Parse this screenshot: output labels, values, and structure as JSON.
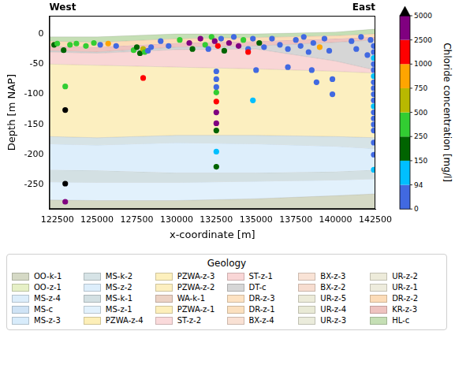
{
  "chart_data": {
    "type": "scatter",
    "annotations": [
      {
        "text": "West",
        "x": 122000
      },
      {
        "text": "East",
        "x": 142500
      }
    ],
    "x_label": "x-coordinate [m]",
    "y_label": "Depth [m NAP]",
    "xlim": [
      122000,
      142500
    ],
    "xticks": [
      122500,
      125000,
      127500,
      130000,
      132500,
      135000,
      137500,
      140000,
      142500
    ],
    "ylim": [
      -290,
      30
    ],
    "yticks": [
      -250,
      -200,
      -150,
      -100,
      -50,
      0
    ],
    "grid": false,
    "points": {
      "x": [
        122300,
        122500,
        122900,
        123300,
        123700,
        124300,
        124800,
        125200,
        125700,
        126200,
        127300,
        127500,
        127700,
        127900,
        128000,
        128200,
        128400,
        127900,
        123000,
        123000,
        123000,
        123000,
        129000,
        129500,
        130200,
        130800,
        131000,
        131500,
        131800,
        132000,
        132200,
        132400,
        132600,
        132800,
        133000,
        133300,
        133600,
        133900,
        134200,
        134500,
        134800,
        135200,
        135500,
        132500,
        132500,
        132500,
        132500,
        132500,
        132500,
        132500,
        132500,
        132500,
        132500,
        134500,
        134800,
        135000,
        136000,
        136500,
        137000,
        137500,
        137800,
        138000,
        138300,
        138600,
        139000,
        139300,
        139600,
        137000,
        138500,
        138800,
        139800,
        139800,
        141000,
        141300,
        141600,
        142400,
        142400,
        142400,
        142400,
        142400,
        142400,
        142400,
        142400,
        142400,
        142400,
        142400,
        142400,
        142400,
        142400,
        142400,
        142400,
        142400,
        142400,
        142200,
        142000
      ],
      "y": [
        -18,
        -16,
        -27,
        -18,
        -16,
        -20,
        -15,
        -18,
        -16,
        -20,
        -27,
        -22,
        -32,
        -25,
        -30,
        -28,
        -22,
        -73,
        -87,
        -126,
        -248,
        -278,
        -12,
        -20,
        -10,
        -15,
        -25,
        -8,
        -18,
        -25,
        -5,
        -12,
        -20,
        -8,
        -28,
        -15,
        -5,
        -20,
        -10,
        -25,
        -8,
        -15,
        -22,
        -62,
        -75,
        -88,
        -97,
        -112,
        -130,
        -148,
        -160,
        -195,
        -220,
        -30,
        -110,
        -60,
        -8,
        -18,
        -25,
        -10,
        -20,
        -5,
        -30,
        -15,
        -22,
        -8,
        -28,
        -55,
        -60,
        -80,
        -75,
        -100,
        -12,
        -25,
        -5,
        -20,
        -30,
        -40,
        -50,
        -60,
        -70,
        -80,
        -90,
        -100,
        -110,
        -120,
        -130,
        -140,
        -150,
        -160,
        -180,
        -200,
        -225,
        -10,
        -35
      ],
      "values": [
        200,
        300,
        200,
        300,
        300,
        300,
        300,
        50,
        800,
        50,
        300,
        200,
        200,
        600,
        300,
        50,
        50,
        1500,
        300,
        7000,
        7000,
        3000,
        50,
        50,
        300,
        3000,
        200,
        3000,
        300,
        50,
        300,
        3000,
        1500,
        50,
        200,
        3000,
        50,
        3000,
        300,
        50,
        50,
        200,
        50,
        50,
        50,
        50,
        300,
        1500,
        3000,
        3000,
        200,
        120,
        200,
        1500,
        120,
        50,
        50,
        50,
        50,
        50,
        50,
        50,
        50,
        50,
        800,
        50,
        50,
        50,
        50,
        50,
        50,
        50,
        50,
        50,
        50,
        50,
        50,
        120,
        50,
        50,
        120,
        50,
        50,
        50,
        50,
        120,
        50,
        50,
        50,
        50,
        50,
        50,
        120,
        50,
        50
      ]
    },
    "colorbar": {
      "title": "Chloride concentration [mg/l]",
      "ticks": [
        0,
        94,
        150,
        250,
        500,
        750,
        1000,
        2500,
        5000
      ],
      "colors": [
        "#4169e1",
        "#00bfff",
        "#006400",
        "#32cd32",
        "#b8b800",
        "#ffa500",
        "#ff0000",
        "#800080",
        "#000000"
      ]
    },
    "legend": "bottom",
    "legend_title": "Geology",
    "layers": {
      "x": [
        122000,
        125000,
        130000,
        135000,
        140000,
        142500
      ],
      "units": [
        {
          "name": "OO-k-1",
          "color": "#d5d9c5",
          "top": [
            -275,
            -276,
            -276,
            -273,
            -268,
            -265
          ],
          "bottom": [
            -290,
            -290,
            -290,
            -290,
            -290,
            -290
          ]
        },
        {
          "name": "OO-z-1",
          "color": "#e6f0c6"
        },
        {
          "name": "MS-z-4",
          "color": "#dcedfa"
        },
        {
          "name": "MS-c",
          "color": "#cfe3f5"
        },
        {
          "name": "MS-z-3",
          "color": "#d8ecfb"
        },
        {
          "name": "MS-k-2",
          "color": "#d6e3e6",
          "top": [
            -170,
            -172,
            -168,
            -168,
            -170,
            -172
          ],
          "bottom": [
            -182,
            -184,
            -180,
            -182,
            -186,
            -190
          ]
        },
        {
          "name": "MS-z-2",
          "color": "#ddeefb",
          "top": [
            -182,
            -184,
            -180,
            -182,
            -186,
            -190
          ],
          "bottom": [
            -225,
            -226,
            -230,
            -230,
            -228,
            -225
          ]
        },
        {
          "name": "MS-k-1",
          "color": "#d3e0e3",
          "top": [
            -225,
            -226,
            -230,
            -230,
            -228,
            -225
          ],
          "bottom": [
            -245,
            -246,
            -246,
            -244,
            -242,
            -240
          ]
        },
        {
          "name": "MS-z-1",
          "color": "#e2f1fc",
          "top": [
            -245,
            -246,
            -246,
            -244,
            -242,
            -240
          ],
          "bottom": [
            -275,
            -276,
            -276,
            -273,
            -268,
            -265
          ]
        },
        {
          "name": "PZWA-z-4",
          "color": "#fdefb8"
        },
        {
          "name": "PZWA-z-3",
          "color": "#fdf0bd"
        },
        {
          "name": "PZWA-z-2",
          "color": "#fcefc0",
          "top": [
            -50,
            -52,
            -55,
            -58,
            -62,
            -65
          ],
          "bottom": [
            -170,
            -172,
            -168,
            -168,
            -170,
            -172
          ]
        },
        {
          "name": "WA-k-1",
          "color": "#ecd2c4"
        },
        {
          "name": "PZWA-z-1",
          "color": "#fdefbb"
        },
        {
          "name": "ST-z-2",
          "color": "#fadadb"
        },
        {
          "name": "ST-z-1",
          "color": "#f9d6d6",
          "top": [
            -30,
            -32,
            -26,
            -25,
            -45,
            -60
          ],
          "bottom": [
            -50,
            -52,
            -55,
            -58,
            -62,
            -65
          ]
        },
        {
          "name": "DT-c",
          "color": "#d6d6d6",
          "top": [
            -28,
            -30,
            -22,
            -20,
            -14,
            -10
          ],
          "bottom": [
            -30,
            -32,
            -26,
            -25,
            -45,
            -60
          ]
        },
        {
          "name": "DR-z-3",
          "color": "#fde2c2"
        },
        {
          "name": "DR-z-1",
          "color": "#fbe0bf"
        },
        {
          "name": "BX-z-4",
          "color": "#f9e1d4"
        },
        {
          "name": "BX-z-3",
          "color": "#f9e3d6"
        },
        {
          "name": "BX-z-2",
          "color": "#f7ddd0"
        },
        {
          "name": "UR-z-5",
          "color": "#ecebd9"
        },
        {
          "name": "UR-z-4",
          "color": "#e9ead6"
        },
        {
          "name": "UR-z-3",
          "color": "#ebecdc"
        },
        {
          "name": "UR-z-2",
          "color": "#edebda"
        },
        {
          "name": "UR-z-1",
          "color": "#eeecdd"
        },
        {
          "name": "DR-z-2",
          "color": "#fcdcb8",
          "top": [
            -12,
            -14,
            -8,
            -6,
            -3,
            0
          ],
          "bottom": [
            -20,
            -22,
            -15,
            -12,
            -8,
            -5
          ]
        },
        {
          "name": "KR-z-3",
          "color": "#eec3c0",
          "top": [
            -20,
            -22,
            -15,
            -12,
            -8,
            -5
          ],
          "bottom": [
            -28,
            -30,
            -22,
            -20,
            -14,
            -10
          ]
        },
        {
          "name": "HL-c",
          "color": "#c5dfb5",
          "top": [
            -5,
            -5,
            0,
            0,
            3,
            8
          ],
          "bottom": [
            -12,
            -14,
            -8,
            -6,
            -3,
            0
          ]
        }
      ]
    }
  }
}
